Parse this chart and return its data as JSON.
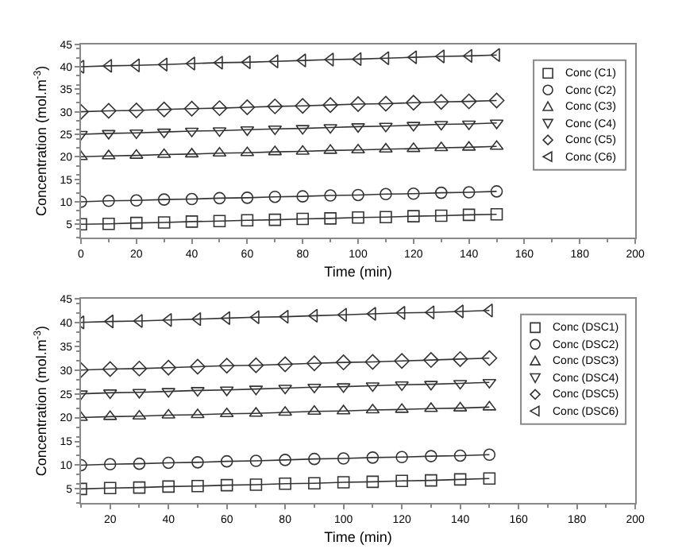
{
  "chart_data": [
    {
      "type": "line",
      "xlabel": "Time (min)",
      "ylabel": "Concentration (mol.m$^{-3}$)",
      "xlim": [
        0,
        200
      ],
      "xticks": [
        0,
        20,
        40,
        60,
        80,
        100,
        120,
        140,
        160,
        180,
        200
      ],
      "ylim": [
        2,
        45
      ],
      "yticks": [
        5,
        10,
        15,
        20,
        25,
        30,
        35,
        40,
        45
      ],
      "grid": false,
      "legend": "top right",
      "x": [
        0,
        10,
        20,
        30,
        40,
        50,
        60,
        70,
        80,
        90,
        100,
        110,
        120,
        130,
        140,
        150
      ],
      "series": [
        {
          "name": "Conc (C1)",
          "color": "#333333",
          "marker": "square",
          "values": [
            5.0,
            5.1,
            5.3,
            5.4,
            5.6,
            5.7,
            5.9,
            6.0,
            6.2,
            6.3,
            6.5,
            6.6,
            6.8,
            6.9,
            7.1,
            7.2
          ]
        },
        {
          "name": "Conc (C2)",
          "color": "#333333",
          "marker": "circle",
          "values": [
            10.0,
            10.2,
            10.3,
            10.5,
            10.6,
            10.8,
            10.9,
            11.1,
            11.2,
            11.4,
            11.5,
            11.7,
            11.8,
            12.0,
            12.1,
            12.3
          ]
        },
        {
          "name": "Conc (C3)",
          "color": "#333333",
          "marker": "triangle-up",
          "values": [
            20.0,
            20.2,
            20.3,
            20.5,
            20.6,
            20.8,
            20.9,
            21.1,
            21.2,
            21.4,
            21.5,
            21.7,
            21.8,
            22.0,
            22.1,
            22.3
          ]
        },
        {
          "name": "Conc (C4)",
          "color": "#333333",
          "marker": "triangle-down",
          "values": [
            25.0,
            25.2,
            25.3,
            25.5,
            25.7,
            25.8,
            26.0,
            26.2,
            26.3,
            26.5,
            26.7,
            26.8,
            27.0,
            27.2,
            27.3,
            27.5
          ]
        },
        {
          "name": "Conc (C5)",
          "color": "#333333",
          "marker": "diamond",
          "values": [
            30.0,
            30.2,
            30.3,
            30.5,
            30.7,
            30.8,
            31.0,
            31.2,
            31.3,
            31.5,
            31.7,
            31.8,
            32.0,
            32.2,
            32.3,
            32.5
          ]
        },
        {
          "name": "Conc (C6)",
          "color": "#333333",
          "marker": "triangle-left",
          "values": [
            40.0,
            40.2,
            40.3,
            40.5,
            40.7,
            40.9,
            41.0,
            41.2,
            41.4,
            41.6,
            41.7,
            41.9,
            42.1,
            42.3,
            42.4,
            42.6
          ]
        }
      ]
    },
    {
      "type": "line",
      "xlabel": "Time (min)",
      "ylabel": "Concentration (mol.m$^{-3}$)",
      "xlim": [
        10,
        200
      ],
      "xticks": [
        20,
        40,
        60,
        80,
        100,
        120,
        140,
        160,
        180,
        200
      ],
      "ylim": [
        2,
        45
      ],
      "yticks": [
        5,
        10,
        15,
        20,
        25,
        30,
        35,
        40,
        45
      ],
      "grid": false,
      "legend": "top right",
      "x": [
        10,
        20,
        30,
        40,
        50,
        60,
        70,
        80,
        90,
        100,
        110,
        120,
        130,
        140,
        150
      ],
      "series": [
        {
          "name": "Conc (DSC1)",
          "color": "#333333",
          "marker": "square",
          "values": [
            5.0,
            5.2,
            5.3,
            5.5,
            5.6,
            5.8,
            5.9,
            6.1,
            6.2,
            6.4,
            6.5,
            6.7,
            6.8,
            7.0,
            7.2
          ]
        },
        {
          "name": "Conc (DSC2)",
          "color": "#333333",
          "marker": "circle",
          "values": [
            10.0,
            10.2,
            10.3,
            10.5,
            10.6,
            10.8,
            10.9,
            11.1,
            11.3,
            11.4,
            11.6,
            11.7,
            11.9,
            12.0,
            12.2
          ]
        },
        {
          "name": "Conc (DSC3)",
          "color": "#333333",
          "marker": "triangle-up",
          "values": [
            20.0,
            20.2,
            20.3,
            20.5,
            20.6,
            20.8,
            20.9,
            21.1,
            21.3,
            21.4,
            21.6,
            21.7,
            21.9,
            22.0,
            22.2
          ]
        },
        {
          "name": "Conc (DSC4)",
          "color": "#333333",
          "marker": "triangle-down",
          "values": [
            25.0,
            25.2,
            25.3,
            25.5,
            25.7,
            25.8,
            26.0,
            26.2,
            26.4,
            26.5,
            26.7,
            26.9,
            27.0,
            27.2,
            27.4
          ]
        },
        {
          "name": "Conc (DSC5)",
          "color": "#333333",
          "marker": "diamond",
          "values": [
            30.0,
            30.2,
            30.3,
            30.5,
            30.7,
            30.9,
            31.0,
            31.2,
            31.4,
            31.6,
            31.7,
            31.9,
            32.1,
            32.3,
            32.5
          ]
        },
        {
          "name": "Conc (DSC6)",
          "color": "#333333",
          "marker": "triangle-left",
          "values": [
            40.0,
            40.2,
            40.3,
            40.5,
            40.7,
            40.9,
            41.1,
            41.2,
            41.4,
            41.6,
            41.8,
            42.0,
            42.1,
            42.3,
            42.5
          ]
        }
      ]
    }
  ]
}
